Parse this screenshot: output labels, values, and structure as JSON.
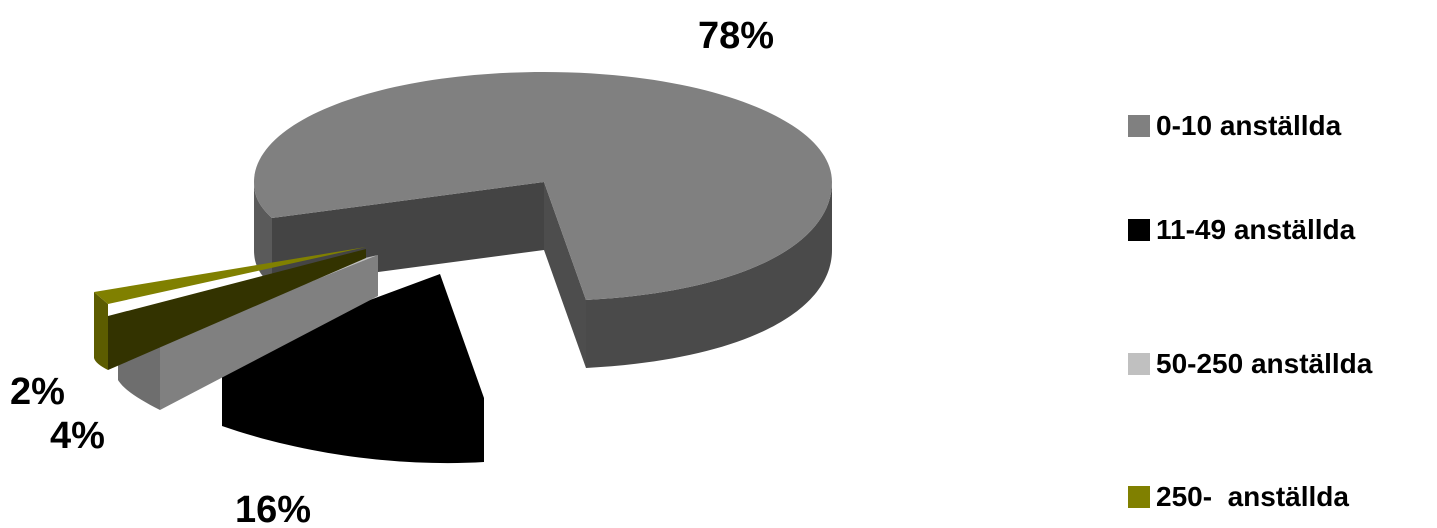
{
  "chart_data": {
    "type": "pie",
    "style": "3d-exploded",
    "categories": [
      "0-10 anställda",
      "11-49 anställda",
      "50-250 anställda",
      "250-  anställda"
    ],
    "values": [
      78,
      16,
      4,
      2
    ],
    "data_labels": [
      "78%",
      "16%",
      "4%",
      "2%"
    ],
    "colors": [
      "#808080",
      "#000000",
      "#c0c0c0",
      "#808000"
    ],
    "legend": {
      "placement": "right"
    }
  }
}
